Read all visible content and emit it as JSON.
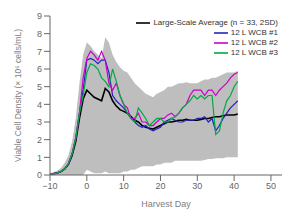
{
  "chart_data": {
    "type": "line",
    "xlabel": "Harvest Day",
    "ylabel": "Viable Cell Density (× 10⁶ cells/mL)",
    "x": [
      -10,
      -9,
      -8,
      -7,
      -6,
      -5,
      -4,
      -3,
      -2,
      -1,
      0,
      1,
      2,
      3,
      4,
      5,
      6,
      7,
      8,
      9,
      10,
      11,
      12,
      13,
      14,
      15,
      16,
      17,
      18,
      19,
      20,
      21,
      22,
      23,
      24,
      25,
      26,
      27,
      28,
      29,
      30,
      31,
      32,
      33,
      34,
      35,
      36,
      37,
      38,
      39,
      40,
      41
    ],
    "xlim": [
      -10,
      53
    ],
    "xticks": [
      {
        "value": -10,
        "label": "−10"
      },
      0,
      10,
      20,
      30,
      40,
      50
    ],
    "ylim": [
      0,
      9
    ],
    "yticks": [
      0,
      1,
      2,
      3,
      4,
      5,
      6,
      7,
      8,
      9
    ],
    "grid": false,
    "legend": "upper right",
    "series": [
      {
        "type": "band",
        "color": "#bebebe",
        "lower": [
          0.0,
          0.0,
          0.0,
          0.0,
          0.0,
          0.0,
          0.0,
          0.0,
          0.0,
          0.0,
          0.3,
          0.2,
          0.1,
          0.1,
          0.1,
          0.2,
          0.1,
          0.1,
          0.1,
          0.1,
          0.2,
          0.2,
          0.3,
          0.3,
          0.4,
          0.5,
          0.5,
          0.5,
          0.5,
          0.6,
          0.6,
          0.7,
          0.7,
          0.7,
          0.8,
          0.8,
          0.8,
          0.8,
          0.8,
          0.8,
          0.8,
          0.8,
          0.85,
          0.9,
          0.9,
          0.95,
          0.95,
          0.95,
          1.0,
          1.0,
          1.0,
          1.0
        ],
        "upper": [
          0.1,
          0.15,
          0.25,
          0.4,
          0.7,
          1.1,
          1.9,
          3.2,
          5.2,
          6.8,
          7.5,
          7.3,
          7.0,
          6.8,
          6.6,
          7.8,
          7.5,
          6.8,
          6.4,
          6.1,
          5.9,
          5.8,
          5.5,
          5.2,
          5.0,
          4.8,
          4.6,
          4.5,
          4.4,
          4.6,
          4.7,
          4.8,
          5.0,
          5.0,
          5.1,
          5.2,
          5.2,
          5.25,
          5.2,
          5.2,
          5.2,
          5.3,
          5.4,
          5.4,
          5.5,
          5.5,
          5.6,
          5.7,
          5.8,
          5.8,
          5.8,
          5.9
        ]
      },
      {
        "name": "Large-Scale Average (n = 33, 2SD)",
        "color": "#000000",
        "values": [
          0.05,
          0.08,
          0.12,
          0.2,
          0.35,
          0.6,
          1.1,
          1.9,
          3.2,
          4.3,
          4.8,
          4.6,
          4.4,
          4.3,
          4.2,
          4.9,
          4.7,
          4.2,
          3.9,
          3.7,
          3.6,
          3.5,
          3.3,
          3.1,
          3.0,
          2.8,
          2.7,
          2.65,
          2.6,
          2.7,
          2.8,
          2.9,
          3.0,
          3.0,
          3.05,
          3.1,
          3.1,
          3.15,
          3.1,
          3.1,
          3.1,
          3.15,
          3.2,
          3.2,
          3.25,
          3.3,
          3.3,
          3.35,
          3.4,
          3.4,
          3.4,
          3.45
        ]
      },
      {
        "name": "12 L WCB #1",
        "color": "#2222bb",
        "values": [
          0.05,
          0.08,
          0.12,
          0.2,
          0.35,
          0.65,
          1.2,
          2.1,
          3.5,
          4.8,
          6.5,
          6.6,
          6.5,
          6.3,
          6.5,
          6.5,
          5.8,
          4.5,
          4.2,
          4.0,
          3.8,
          3.5,
          3.2,
          3.0,
          2.8,
          2.7,
          2.8,
          2.6,
          2.5,
          2.6,
          2.7,
          3.0,
          3.1,
          3.2,
          3.1,
          3.0,
          3.0,
          3.1,
          3.1,
          3.1,
          3.2,
          3.2,
          3.3,
          3.0,
          3.2,
          2.5,
          2.8,
          3.2,
          3.5,
          3.8,
          4.0,
          4.2
        ]
      },
      {
        "name": "12 L WCB #2",
        "color": "#cc00cc",
        "values": [
          0.05,
          0.08,
          0.12,
          0.2,
          0.35,
          0.65,
          1.2,
          2.1,
          3.5,
          5.5,
          6.6,
          7.0,
          6.8,
          6.5,
          7.0,
          6.5,
          5.2,
          4.8,
          5.2,
          4.5,
          4.0,
          3.8,
          3.2,
          3.2,
          3.5,
          3.0,
          3.0,
          2.8,
          2.8,
          3.0,
          3.2,
          3.2,
          3.4,
          3.5,
          3.3,
          3.5,
          3.8,
          4.0,
          4.5,
          4.8,
          4.8,
          4.8,
          4.5,
          4.8,
          4.8,
          4.5,
          4.8,
          5.0,
          5.2,
          5.5,
          5.7,
          5.8
        ]
      },
      {
        "name": "12 L WCB #3",
        "color": "#00aa44",
        "values": [
          0.05,
          0.08,
          0.12,
          0.2,
          0.35,
          0.65,
          1.2,
          2.1,
          3.5,
          4.5,
          5.8,
          6.3,
          6.2,
          6.0,
          5.5,
          5.3,
          5.0,
          6.0,
          5.3,
          4.5,
          4.0,
          3.5,
          3.2,
          3.0,
          3.8,
          3.5,
          3.2,
          2.8,
          3.0,
          3.2,
          3.2,
          3.0,
          3.0,
          3.2,
          3.3,
          3.5,
          3.8,
          4.0,
          4.2,
          4.5,
          4.3,
          4.5,
          4.3,
          4.5,
          4.5,
          2.3,
          2.5,
          3.5,
          4.2,
          4.5,
          5.0,
          5.3
        ]
      }
    ]
  }
}
